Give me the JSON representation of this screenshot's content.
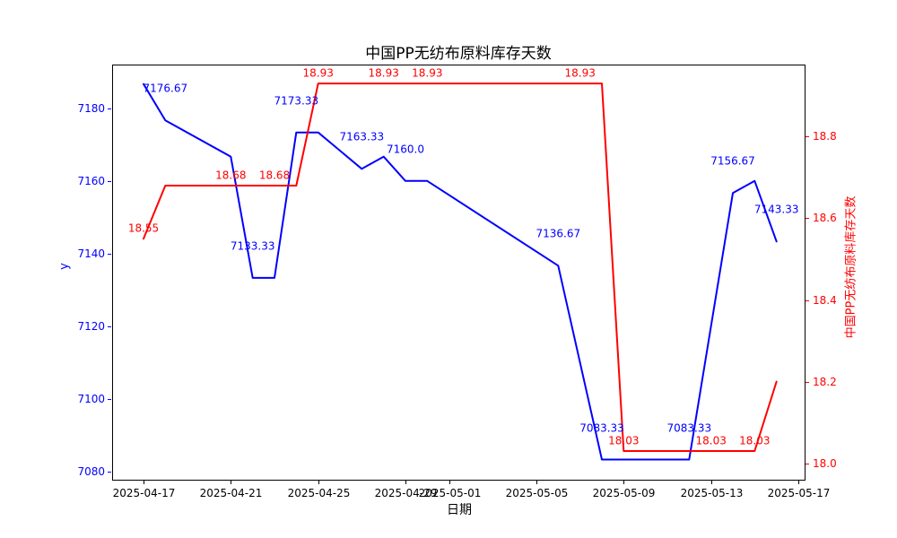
{
  "figure": {
    "title": "中国PP无纺布原料库存天数",
    "xlabel": "日期",
    "ylabel_left": "y",
    "ylabel_right": "中国PP无纺布原料库存天数",
    "background": "#ffffff",
    "spine_color": "#000000"
  },
  "chart_data": {
    "type": "line",
    "title": "中国PP无纺布原料库存天数",
    "xlabel": "日期",
    "ylabel_left": "y",
    "ylabel_right": "中国PP无纺布原料库存天数",
    "grid": false,
    "legend": "none",
    "x_start": "2025-04-17",
    "x_end": "2025-05-17",
    "x_ticks": [
      "2025-04-17",
      "2025-04-21",
      "2025-04-25",
      "2025-04-29",
      "2025-05-01",
      "2025-05-05",
      "2025-05-09",
      "2025-05-13",
      "2025-05-17"
    ],
    "left_axis": {
      "color": "#0000ff",
      "ticks": [
        "7080",
        "7100",
        "7120",
        "7140",
        "7160",
        "7180"
      ],
      "ylim": [
        7075,
        7190
      ]
    },
    "right_axis": {
      "color": "#ff0000",
      "ticks": [
        "18.0",
        "18.2",
        "18.4",
        "18.6",
        "18.8"
      ],
      "ylim": [
        18.0,
        18.96
      ]
    },
    "series": [
      {
        "name": "y",
        "axis": "left",
        "color": "#0000ff",
        "points": [
          [
            "2025-04-17",
            7186.67
          ],
          [
            "2025-04-18",
            7176.67
          ],
          [
            "2025-04-21",
            7166.67
          ],
          [
            "2025-04-22",
            7133.33
          ],
          [
            "2025-04-23",
            7133.33
          ],
          [
            "2025-04-24",
            7173.33
          ],
          [
            "2025-04-25",
            7173.33
          ],
          [
            "2025-04-27",
            7163.33
          ],
          [
            "2025-04-28",
            7166.67
          ],
          [
            "2025-04-29",
            7160.0
          ],
          [
            "2025-04-30",
            7160.0
          ],
          [
            "2025-05-06",
            7136.67
          ],
          [
            "2025-05-08",
            7083.33
          ],
          [
            "2025-05-12",
            7083.33
          ],
          [
            "2025-05-14",
            7156.67
          ],
          [
            "2025-05-15",
            7160.0
          ],
          [
            "2025-05-16",
            7143.33
          ]
        ],
        "labels": [
          [
            "2025-04-18",
            "7176.67"
          ],
          [
            "2025-04-22",
            "7133.33"
          ],
          [
            "2025-04-24",
            "7173.33"
          ],
          [
            "2025-04-27",
            "7163.33"
          ],
          [
            "2025-04-29",
            "7160.0"
          ],
          [
            "2025-05-06",
            "7136.67"
          ],
          [
            "2025-05-08",
            "7083.33"
          ],
          [
            "2025-05-12",
            "7083.33"
          ],
          [
            "2025-05-14",
            "7156.67"
          ],
          [
            "2025-05-16",
            "7143.33"
          ]
        ]
      },
      {
        "name": "中国PP无纺布原料库存天数",
        "axis": "right",
        "color": "#ff0000",
        "points": [
          [
            "2025-04-17",
            18.55
          ],
          [
            "2025-04-18",
            18.68
          ],
          [
            "2025-04-24",
            18.68
          ],
          [
            "2025-04-25",
            18.93
          ],
          [
            "2025-05-08",
            18.93
          ],
          [
            "2025-05-09",
            18.03
          ],
          [
            "2025-05-15",
            18.03
          ],
          [
            "2025-05-16",
            18.2
          ]
        ],
        "labels": [
          [
            "2025-04-17",
            "18.55"
          ],
          [
            "2025-04-21",
            "18.68"
          ],
          [
            "2025-04-23",
            "18.68"
          ],
          [
            "2025-04-25",
            "18.93"
          ],
          [
            "2025-04-28",
            "18.93"
          ],
          [
            "2025-04-30",
            "18.93"
          ],
          [
            "2025-05-07",
            "18.93"
          ],
          [
            "2025-05-09",
            "18.03"
          ],
          [
            "2025-05-13",
            "18.03"
          ],
          [
            "2025-05-15",
            "18.03"
          ]
        ]
      }
    ]
  }
}
